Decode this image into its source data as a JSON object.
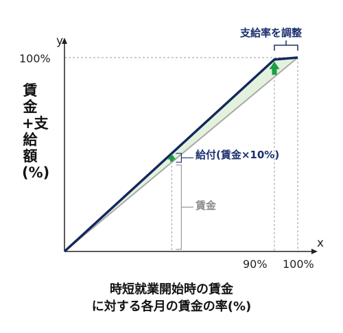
{
  "chart_data": {
    "type": "line",
    "xlabel_lines": [
      "時短就業開始時の賃金",
      "に対する各月の賃金の率(%)"
    ],
    "ylabel": "賃金+支給額(%)",
    "x_axis_letter": "x",
    "y_axis_letter": "y",
    "xlim": [
      0,
      100
    ],
    "ylim": [
      0,
      100
    ],
    "x_ticks": [
      {
        "value": 90,
        "label": "90%"
      },
      {
        "value": 100,
        "label": "100%"
      }
    ],
    "y_ticks": [
      {
        "value": 100,
        "label": "100%"
      }
    ],
    "series": [
      {
        "role": "wage_plus_benefit",
        "color": "#13275f",
        "points": [
          {
            "x": 0,
            "y": 0
          },
          {
            "x": 90,
            "y": 99
          },
          {
            "x": 100,
            "y": 100
          }
        ]
      },
      {
        "role": "wage",
        "color": "#a8a8a8",
        "points": [
          {
            "x": 0,
            "y": 0
          },
          {
            "x": 100,
            "y": 100
          }
        ]
      }
    ],
    "fill_color": "#e3f2dc",
    "arrow_color": "#1e9e46",
    "annotations": {
      "benefit_label": "給付(賃金×10%)",
      "wage_label": "賃金",
      "adjust_label": "支給率を調整"
    },
    "benefit_marker_x": 46
  }
}
